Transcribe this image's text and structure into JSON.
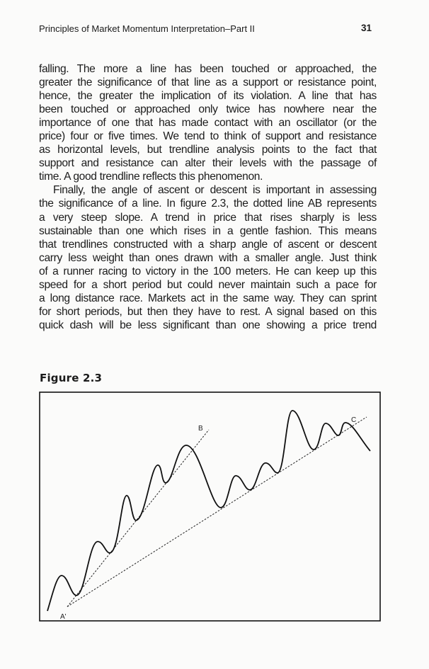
{
  "header": {
    "running_title": "Principles of Market Momentum Interpretation–Part II",
    "page_number": "31"
  },
  "paragraphs": [
    {
      "indent": false,
      "lines": [
        "falling. The more a line has been touched or approached, the",
        "greater the significance of that line as a support or resistance point,",
        "hence, the greater the implication of its violation. A line that has",
        "been touched or approached only twice has nowhere near the",
        "importance of one that has made contact with an oscillator (or the",
        "price) four or five times. We tend to think of support and resistance",
        "as horizontal levels, but trendline analysis points to the fact that",
        "support and resistance can alter their levels with the passage of",
        "time.  A good trendline reflects this phenomenon."
      ]
    },
    {
      "indent": true,
      "lines": [
        "Finally, the angle of ascent or descent is important in assessing",
        "the significance of a line. In figure 2.3, the dotted line AB represents",
        "a very steep slope. A trend in price that rises sharply is less",
        "sustainable than one which rises in a gentle fashion.  This means",
        "that trendlines constructed with a sharp angle of ascent or descent",
        "carry less weight than ones drawn with a smaller angle.  Just think",
        "of a runner racing to victory in the 100 meters.  He can keep up this",
        "speed for a short period but could never maintain such a pace for",
        "a long distance race.  Markets act in the same way.  They can sprint",
        "for short periods, but then they have to rest.  A signal based on this",
        "quick dash will be less significant than one showing a price trend"
      ],
      "continues": true
    }
  ],
  "figure": {
    "label": "Figure 2.3",
    "point_labels": {
      "a": "A'",
      "b": "B",
      "c": "C"
    }
  }
}
